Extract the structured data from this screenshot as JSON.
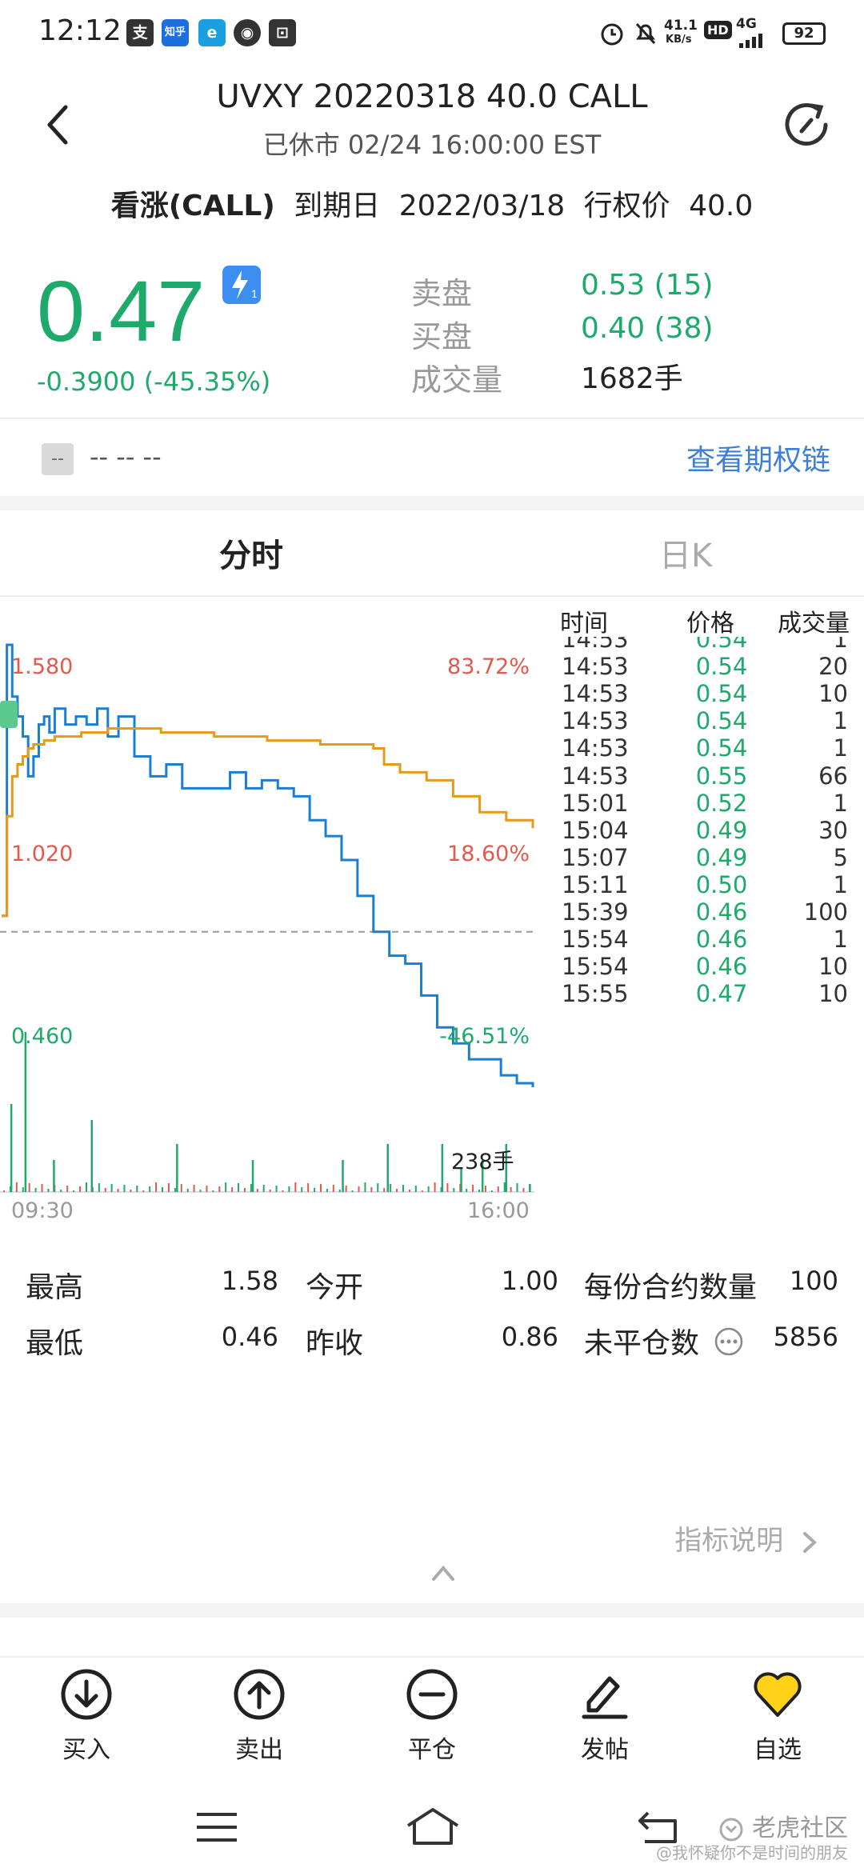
{
  "status_bar": {
    "time": "12:12",
    "app_icons": [
      "支",
      "知乎",
      "e",
      "◉",
      "⊡"
    ],
    "net_speed_value": "41.1",
    "net_speed_unit": "KB/s",
    "hd": "HD",
    "network": "4G",
    "battery": "92"
  },
  "header": {
    "title": "UVXY 20220318 40.0 CALL",
    "subtitle": "已休市 02/24 16:00:00 EST"
  },
  "info": {
    "type": "看涨(CALL)",
    "expiry_label": "到期日",
    "expiry": "2022/03/18",
    "strike_label": "行权价",
    "strike": "40.0"
  },
  "price": {
    "last": "0.47",
    "badge": "1",
    "change": "-0.3900 (-45.35%)",
    "ask_label": "卖盘",
    "ask": "0.53 (15)",
    "bid_label": "买盘",
    "bid": "0.40 (38)",
    "volume_label": "成交量",
    "volume": "1682手"
  },
  "related": {
    "tag": "--",
    "value": "-- -- --",
    "link": "查看期权链"
  },
  "tabs": [
    {
      "label": "分时",
      "active": true
    },
    {
      "label": "日K",
      "active": false
    }
  ],
  "chart_data": {
    "type": "line",
    "y_left_labels": [
      "1.580",
      "1.020",
      "0.460"
    ],
    "y_right_labels": [
      "83.72%",
      "18.60%",
      "-46.51%"
    ],
    "x_labels": [
      "09:30",
      "16:00"
    ],
    "ylim": [
      0.46,
      1.58
    ],
    "prev_close": 0.86,
    "volume_max_label": "238手",
    "series": [
      {
        "color": "#1a7fd4",
        "x": [
          0,
          1,
          2,
          3,
          4,
          5,
          6,
          7,
          8,
          9,
          10,
          12,
          14,
          16,
          18,
          20,
          22,
          25,
          28,
          31,
          34,
          37,
          40,
          43,
          46,
          49,
          52,
          55,
          58,
          61,
          64,
          67,
          70,
          73,
          76,
          79,
          82,
          85,
          88,
          91,
          94,
          97,
          100
        ],
        "y": [
          0.9,
          1.58,
          1.45,
          1.4,
          1.35,
          1.25,
          1.3,
          1.38,
          1.4,
          1.36,
          1.42,
          1.38,
          1.4,
          1.38,
          1.42,
          1.35,
          1.4,
          1.3,
          1.25,
          1.28,
          1.22,
          1.22,
          1.22,
          1.26,
          1.22,
          1.24,
          1.22,
          1.2,
          1.14,
          1.1,
          1.04,
          0.95,
          0.86,
          0.8,
          0.78,
          0.7,
          0.62,
          0.58,
          0.54,
          0.54,
          0.5,
          0.48,
          0.47
        ]
      },
      {
        "color": "#e59a1e",
        "x": [
          0,
          1,
          2,
          3,
          4,
          5,
          6,
          8,
          10,
          15,
          20,
          25,
          30,
          35,
          40,
          45,
          50,
          55,
          60,
          65,
          70,
          72,
          75,
          80,
          85,
          90,
          95,
          100
        ],
        "y": [
          0.9,
          1.15,
          1.25,
          1.28,
          1.3,
          1.32,
          1.33,
          1.34,
          1.35,
          1.36,
          1.37,
          1.37,
          1.36,
          1.36,
          1.35,
          1.35,
          1.34,
          1.34,
          1.33,
          1.33,
          1.32,
          1.28,
          1.26,
          1.24,
          1.2,
          1.16,
          1.14,
          1.12
        ]
      }
    ]
  },
  "trades": {
    "headers": [
      "时间",
      "价格",
      "成交量"
    ],
    "rows": [
      {
        "time": "14:53",
        "price": "0.54",
        "vol": "1"
      },
      {
        "time": "14:53",
        "price": "0.54",
        "vol": "20"
      },
      {
        "time": "14:53",
        "price": "0.54",
        "vol": "10"
      },
      {
        "time": "14:53",
        "price": "0.54",
        "vol": "1"
      },
      {
        "time": "14:53",
        "price": "0.54",
        "vol": "1"
      },
      {
        "time": "14:53",
        "price": "0.55",
        "vol": "66"
      },
      {
        "time": "15:01",
        "price": "0.52",
        "vol": "1"
      },
      {
        "time": "15:04",
        "price": "0.49",
        "vol": "30"
      },
      {
        "time": "15:07",
        "price": "0.49",
        "vol": "5"
      },
      {
        "time": "15:11",
        "price": "0.50",
        "vol": "1"
      },
      {
        "time": "15:39",
        "price": "0.46",
        "vol": "100"
      },
      {
        "time": "15:54",
        "price": "0.46",
        "vol": "1"
      },
      {
        "time": "15:54",
        "price": "0.46",
        "vol": "10"
      },
      {
        "time": "15:55",
        "price": "0.47",
        "vol": "10"
      }
    ]
  },
  "stats": {
    "high_label": "最高",
    "high": "1.58",
    "open_label": "今开",
    "open": "1.00",
    "multiplier_label": "每份合约数量",
    "multiplier": "100",
    "low_label": "最低",
    "low": "0.46",
    "prev_label": "昨收",
    "prev": "0.86",
    "oi_label": "未平仓数",
    "oi": "5856"
  },
  "indicator_link": "指标说明",
  "bottom_nav": [
    {
      "label": "买入",
      "icon": "buy-icon"
    },
    {
      "label": "卖出",
      "icon": "sell-icon"
    },
    {
      "label": "平仓",
      "icon": "close-position-icon"
    },
    {
      "label": "发帖",
      "icon": "post-icon"
    },
    {
      "label": "自选",
      "icon": "watchlist-heart-icon"
    }
  ],
  "watermark": "老虎社区",
  "watermark_sub": "@我怀疑你不是时间的朋友",
  "colors": {
    "up": "#e05a4e",
    "down": "#1eaa6b",
    "accent": "#3d7ed8"
  }
}
